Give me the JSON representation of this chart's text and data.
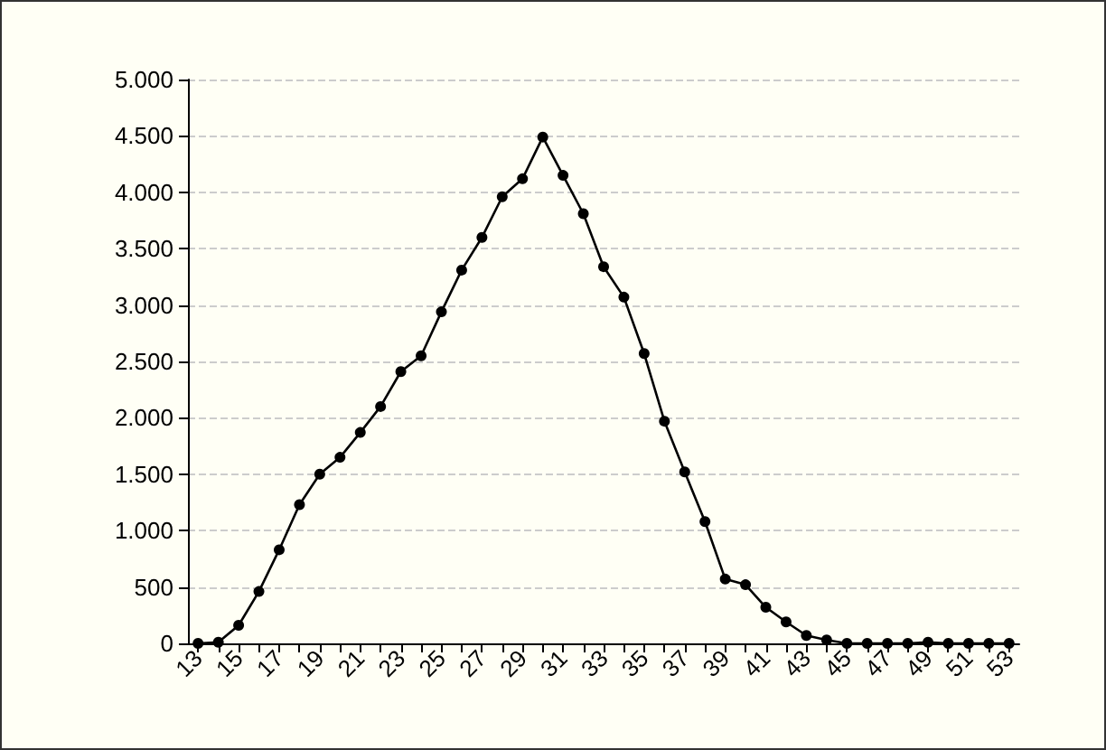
{
  "chart_data": {
    "type": "line",
    "categories": [
      "13",
      null,
      "15",
      null,
      "17",
      null,
      "19",
      null,
      "21",
      null,
      "23",
      null,
      "25",
      null,
      "27",
      null,
      "29",
      null,
      "31",
      null,
      "33",
      null,
      "35",
      null,
      "37",
      null,
      "39",
      null,
      "41",
      null,
      "43",
      null,
      "45",
      null,
      "47",
      null,
      "49",
      null,
      "51",
      null,
      "53"
    ],
    "series": [
      {
        "color": "#000000",
        "values": [
          0,
          10,
          160,
          460,
          830,
          1230,
          1500,
          1650,
          1870,
          2100,
          2410,
          2550,
          2940,
          3310,
          3600,
          3960,
          4120,
          4490,
          4150,
          3810,
          3340,
          3070,
          2570,
          1970,
          1520,
          1080,
          570,
          520,
          320,
          190,
          70,
          30,
          0,
          0,
          0,
          0,
          10,
          0,
          0,
          0,
          0
        ]
      }
    ],
    "ylim": [
      0,
      5000
    ],
    "yticks": [
      {
        "value": 0,
        "label": "0"
      },
      {
        "value": 500,
        "label": "500"
      },
      {
        "value": 1000,
        "label": "1.000"
      },
      {
        "value": 1500,
        "label": "1.500"
      },
      {
        "value": 2000,
        "label": "2.000"
      },
      {
        "value": 2500,
        "label": "2.500"
      },
      {
        "value": 3000,
        "label": "3.000"
      },
      {
        "value": 3500,
        "label": "3.500"
      },
      {
        "value": 4000,
        "label": "4.000"
      },
      {
        "value": 4500,
        "label": "4.500"
      },
      {
        "value": 5000,
        "label": "5.000"
      }
    ],
    "grid": "y",
    "marker": "circle",
    "line_style": "solid"
  }
}
